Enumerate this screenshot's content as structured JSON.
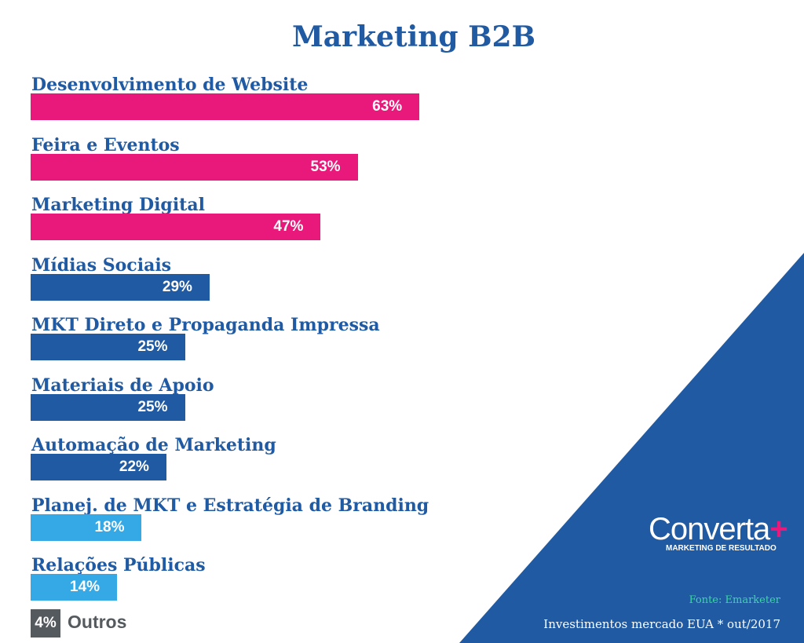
{
  "chart_data": {
    "type": "bar",
    "orientation": "horizontal",
    "title": "Marketing B2B",
    "categories": [
      "Desenvolvimento de Website",
      "Feira e Eventos",
      "Marketing Digital",
      "Mídias Sociais",
      "MKT Direto e Propaganda Impressa",
      "Materiais de Apoio",
      "Automação de Marketing",
      "Planej. de MKT e Estratégia de Branding",
      "Relações Públicas"
    ],
    "values": [
      63,
      53,
      47,
      29,
      25,
      25,
      22,
      18,
      14
    ],
    "value_labels": [
      "63%",
      "53%",
      "47%",
      "29%",
      "25%",
      "25%",
      "22%",
      "18%",
      "14%"
    ],
    "bar_colors": [
      "#e8197a",
      "#e8197a",
      "#e8197a",
      "#1f5aa3",
      "#1f5aa3",
      "#1f5aa3",
      "#1f5aa3",
      "#35a8e6",
      "#35a8e6"
    ],
    "unit": "%",
    "others": {
      "value_label": "4%",
      "label": "Outros",
      "value": 4
    }
  },
  "branding": {
    "logo_text": "Converta",
    "logo_plus": "+",
    "logo_tagline": "MARKETING DE RESULTADO"
  },
  "source": "Fonte: Emarketer",
  "footnote": "Investimentos  mercado EUA * out/2017",
  "colors": {
    "title": "#1f5aa3",
    "triangle": "#1f5aa3",
    "others_badge": "#555a5f",
    "source": "#3fd6a6"
  }
}
